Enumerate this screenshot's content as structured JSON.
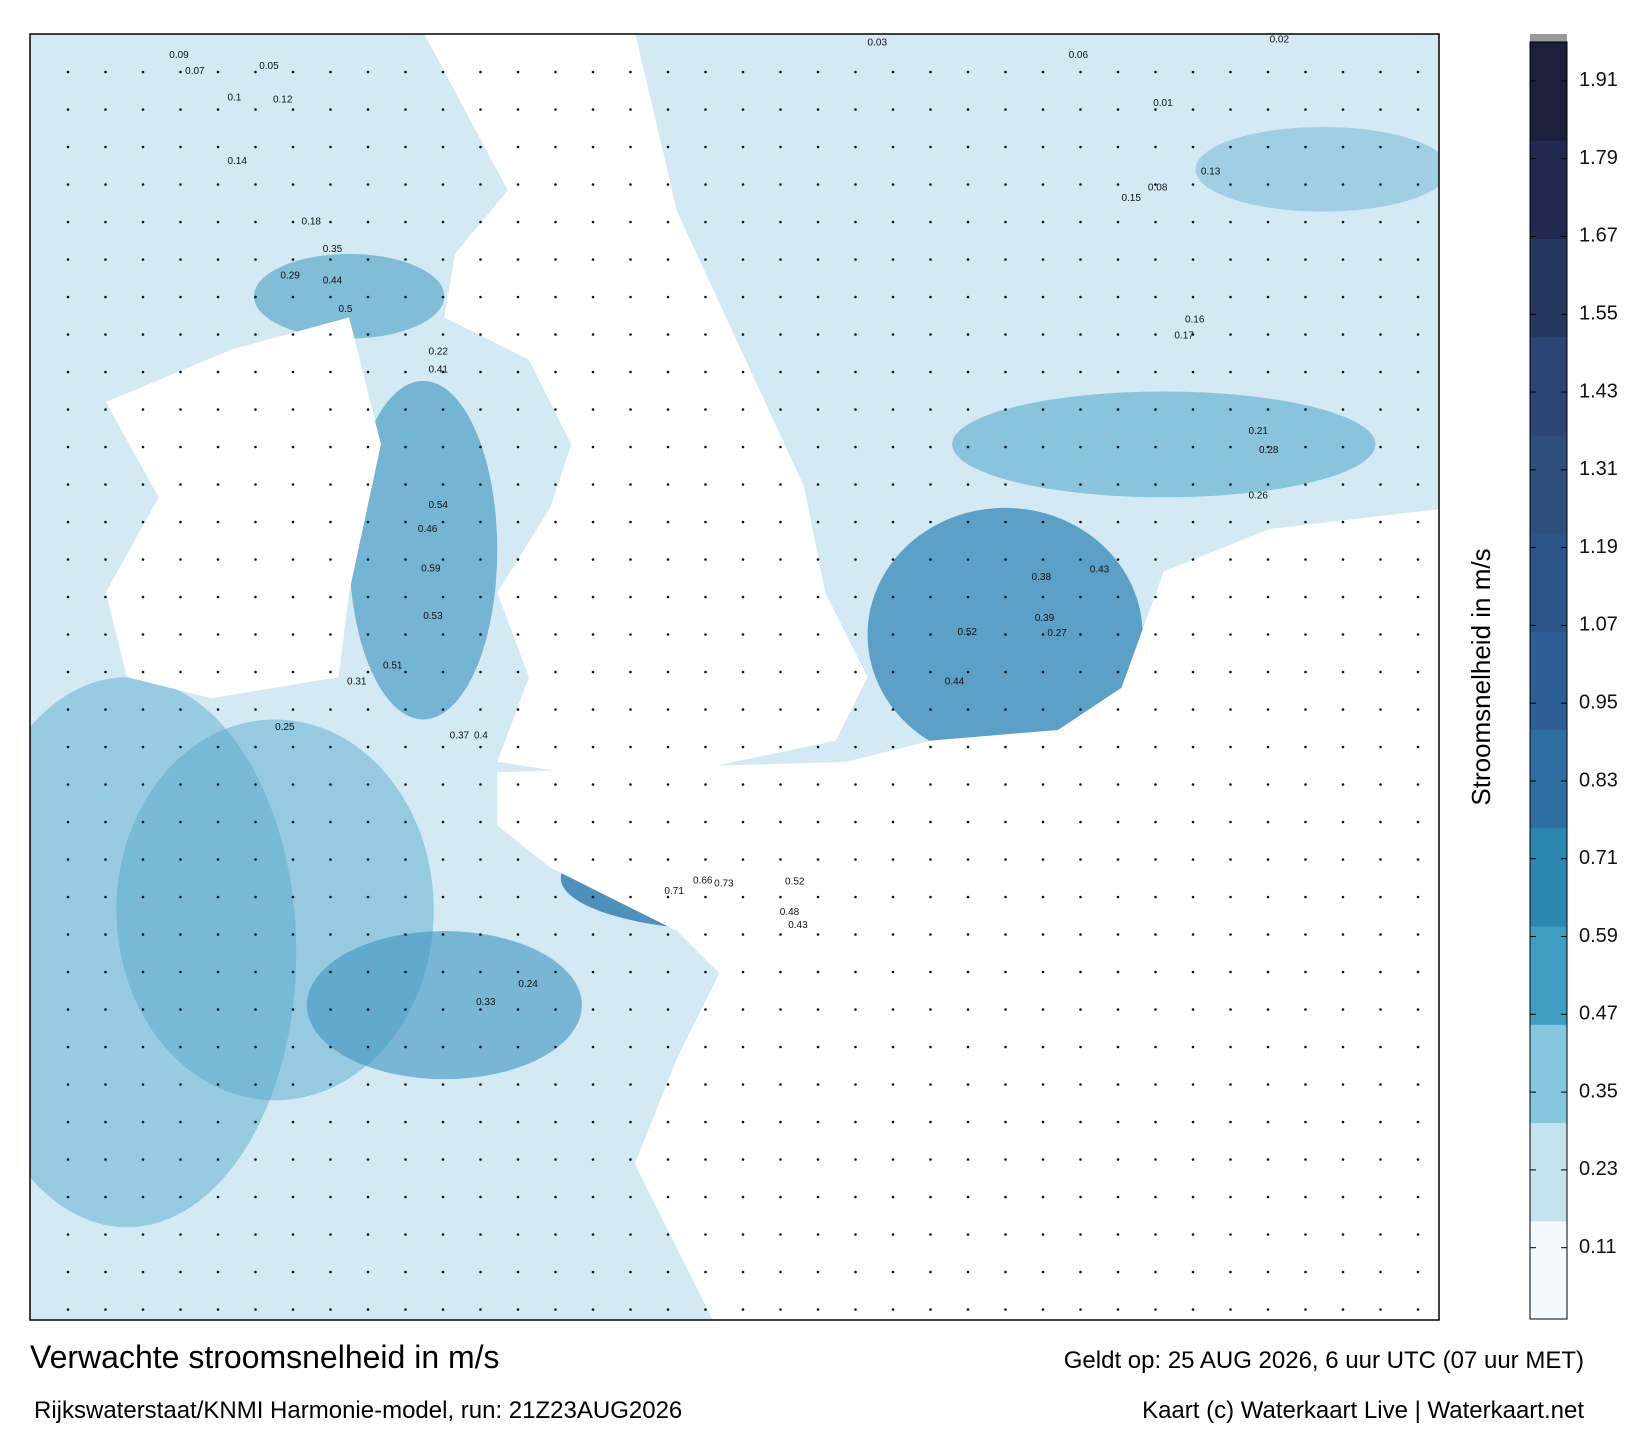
{
  "title": "Verwachte stroomsnelheid in m/s",
  "subtitle": "Rijkswaterstaat/KNMI Harmonie-model, run: 21Z23AUG2026",
  "valid": "Geldt op: 25 AUG 2026, 6 uur UTC (07 uur MET)",
  "credit": "Kaart (c) Waterkaart Live | Waterkaart.net",
  "colorbar": {
    "label": "Stroomsnelheid in m/s",
    "lim": [
      0,
      1.97
    ],
    "ticks": [
      0.11,
      0.23,
      0.35,
      0.47,
      0.59,
      0.71,
      0.83,
      0.95,
      1.07,
      1.19,
      1.31,
      1.43,
      1.55,
      1.67,
      1.79,
      1.91
    ],
    "colors": [
      "#f3f9fc",
      "#c4e3ef",
      "#86c6de",
      "#3f9dc2",
      "#2c86b0",
      "#2e6ea3",
      "#2d5f95",
      "#2d5488",
      "#2e4f7e",
      "#2c4575",
      "#27385f",
      "#22294f",
      "#1b1f3b"
    ]
  },
  "current_labels": [
    0.09,
    0.07,
    0.05,
    0.12,
    0.14,
    0.18,
    0.35,
    0.44,
    0.29,
    0.5,
    0.41,
    0.22,
    0.54,
    0.46,
    0.59,
    0.53,
    0.51,
    0.31,
    0.37,
    0.4,
    0.52,
    0.38,
    0.43,
    0.44,
    0.39,
    0.27,
    0.66,
    0.73,
    0.71,
    0.52,
    0.48,
    0.43,
    0.25,
    0.33,
    0.24,
    0.21,
    0.17,
    0.16,
    0.13,
    0.08,
    0.06,
    0.03,
    0.02,
    0.01,
    0.1,
    0.15,
    0.26,
    0.28
  ]
}
